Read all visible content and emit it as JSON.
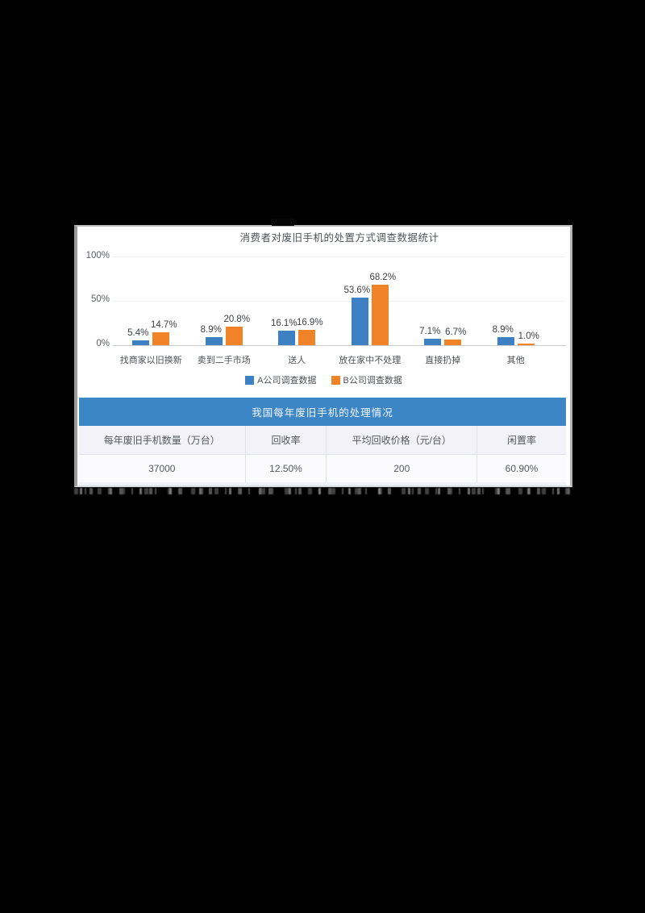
{
  "chart_data": [
    {
      "type": "bar",
      "title": "消费者对废旧手机的处置方式调查数据统计",
      "categories": [
        "找商家以旧换新",
        "卖到二手市场",
        "送人",
        "放在家中不处理",
        "直接扔掉",
        "其他"
      ],
      "series": [
        {
          "name": "A公司调查数据",
          "color": "#3e80c4",
          "values": [
            5.4,
            8.9,
            16.1,
            53.6,
            7.1,
            8.9
          ],
          "labels": [
            "5.4%",
            "8.9%",
            "16.1%",
            "53.6%",
            "7.1%",
            "8.9%"
          ]
        },
        {
          "name": "B公司调查数据",
          "color": "#f08327",
          "values": [
            14.7,
            20.8,
            16.9,
            68.2,
            6.7,
            1.0
          ],
          "labels": [
            "14.7%",
            "20.8%",
            "16.9%",
            "68.2%",
            "6.7%",
            "1.0%"
          ]
        }
      ],
      "y_ticks": [
        "100%",
        "50%",
        "0%"
      ],
      "ylim": [
        0,
        100
      ],
      "grid": "faint-horizontal",
      "legend_position": "bottom"
    },
    {
      "type": "table",
      "title": "我国每年废旧手机的处理情况",
      "title_bg": "#3d86c6",
      "columns": [
        "每年废旧手机数量（万台）",
        "回收率",
        "平均回收价格（元/台）",
        "闲置率"
      ],
      "rows": [
        [
          "37000",
          "12.50%",
          "200",
          "60.90%"
        ]
      ]
    }
  ]
}
